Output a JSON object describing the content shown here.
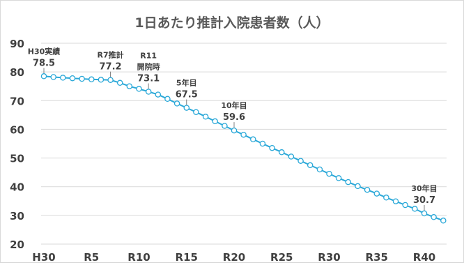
{
  "chart_data": {
    "type": "line",
    "title": "1日あたり推計入院患者数（人）",
    "xlabel": "",
    "ylabel": "",
    "ylim": [
      20,
      90
    ],
    "yticks": [
      20,
      30,
      40,
      50,
      60,
      70,
      80,
      90
    ],
    "x_ticks": [
      {
        "label": "H30",
        "year": 2018
      },
      {
        "label": "R5",
        "year": 2023
      },
      {
        "label": "R10",
        "year": 2028
      },
      {
        "label": "R15",
        "year": 2033
      },
      {
        "label": "R20",
        "year": 2038
      },
      {
        "label": "R25",
        "year": 2043
      },
      {
        "label": "R30",
        "year": 2048
      },
      {
        "label": "R35",
        "year": 2053
      },
      {
        "label": "R40",
        "year": 2058
      }
    ],
    "grid": "horizontal",
    "line_color": "#2aa8d8",
    "marker_fill": "#ffffff",
    "series": [
      {
        "x": [
          2018,
          2019,
          2020,
          2021,
          2022,
          2023,
          2024,
          2025,
          2026,
          2027,
          2028,
          2029,
          2030,
          2031,
          2032,
          2033,
          2034,
          2035,
          2036,
          2037,
          2038,
          2039,
          2040,
          2041,
          2042,
          2043,
          2044,
          2045,
          2046,
          2047,
          2048,
          2049,
          2050,
          2051,
          2052,
          2053,
          2054,
          2055,
          2056,
          2057,
          2058,
          2059,
          2060
        ],
        "values": [
          78.5,
          78.2,
          78.0,
          77.8,
          77.6,
          77.4,
          77.3,
          77.2,
          76.2,
          75.0,
          74.1,
          73.1,
          72.1,
          70.6,
          69.0,
          67.5,
          66.0,
          64.4,
          62.8,
          61.2,
          59.6,
          58.1,
          56.5,
          55.0,
          53.5,
          52.0,
          50.5,
          49.0,
          47.5,
          46.0,
          44.5,
          43.0,
          41.6,
          40.2,
          38.9,
          37.6,
          36.2,
          34.9,
          33.6,
          32.3,
          30.7,
          29.4,
          28.2
        ]
      }
    ],
    "annotations": [
      {
        "year": 2018,
        "label": "H30実績",
        "value_text": "78.5"
      },
      {
        "year": 2025,
        "label": "R7推計",
        "value_text": "77.2"
      },
      {
        "year": 2029,
        "label": "R11",
        "label2": "開院時",
        "value_text": "73.1"
      },
      {
        "year": 2033,
        "label": "5年目",
        "value_text": "67.5"
      },
      {
        "year": 2038,
        "label": "10年目",
        "value_text": "59.6"
      },
      {
        "year": 2058,
        "label": "30年目",
        "value_text": "30.7"
      }
    ]
  }
}
